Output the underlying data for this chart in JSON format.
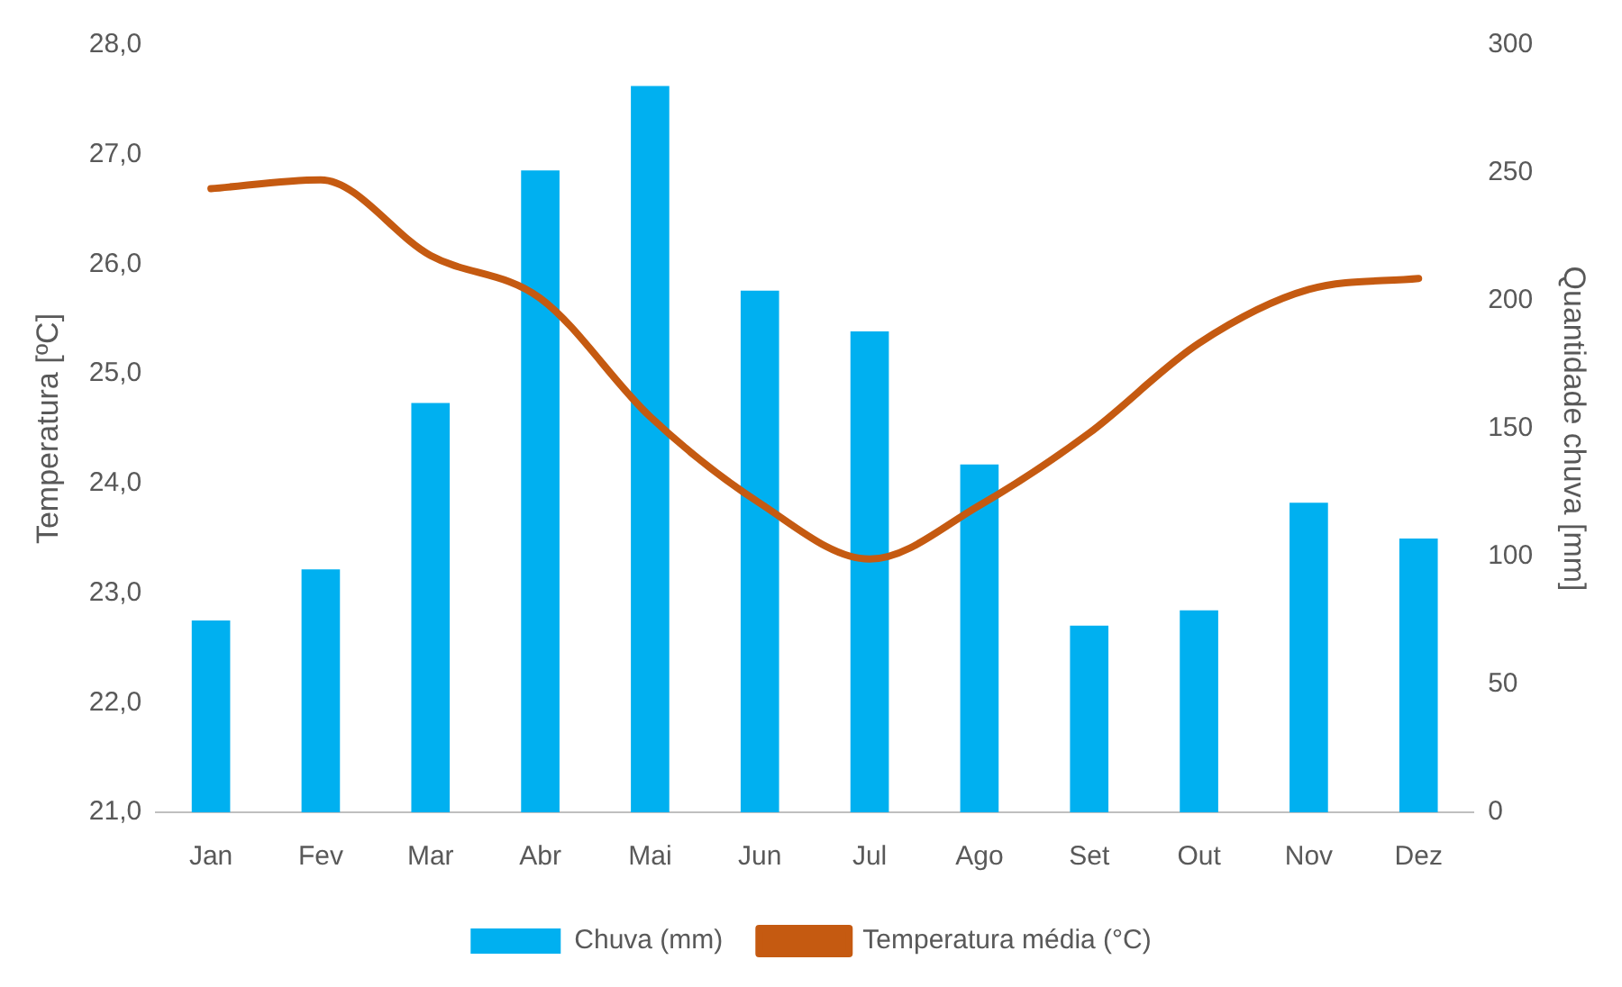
{
  "chart_data": {
    "type": "bar",
    "ylabel": "Temperatura [ºC]",
    "y2label": "Quantidade chuva [mm]",
    "categories": [
      "Jan",
      "Fev",
      "Mar",
      "Abr",
      "Mai",
      "Jun",
      "Jul",
      "Ago",
      "Set",
      "Out",
      "Nov",
      "Dez"
    ],
    "series": [
      {
        "name": "Chuva (mm)",
        "axis": "y2",
        "color": "#00b0f0",
        "values": [
          75,
          95,
          160,
          251,
          284,
          204,
          188,
          136,
          73,
          79,
          121,
          107
        ]
      },
      {
        "name": "Temperatura média (°C)",
        "type": "line",
        "axis": "y",
        "color": "#c55a11",
        "values": [
          26.69,
          26.77,
          26.08,
          25.69,
          24.61,
          23.82,
          23.31,
          23.8,
          24.46,
          25.28,
          25.77,
          25.87
        ]
      }
    ],
    "ylim": [
      21,
      28
    ],
    "yticks": [
      {
        "value": 21,
        "label": "21,0"
      },
      {
        "value": 22,
        "label": "22,0"
      },
      {
        "value": 23,
        "label": "23,0"
      },
      {
        "value": 24,
        "label": "24,0"
      },
      {
        "value": 25,
        "label": "25,0"
      },
      {
        "value": 26,
        "label": "26,0"
      },
      {
        "value": 27,
        "label": "27,0"
      },
      {
        "value": 28,
        "label": "28,0"
      }
    ],
    "y2lim": [
      0,
      300
    ],
    "y2ticks": [
      0,
      50,
      100,
      150,
      200,
      250,
      300
    ],
    "grid": false,
    "legend": "bottom",
    "marker": "none",
    "line_style": "solid"
  }
}
